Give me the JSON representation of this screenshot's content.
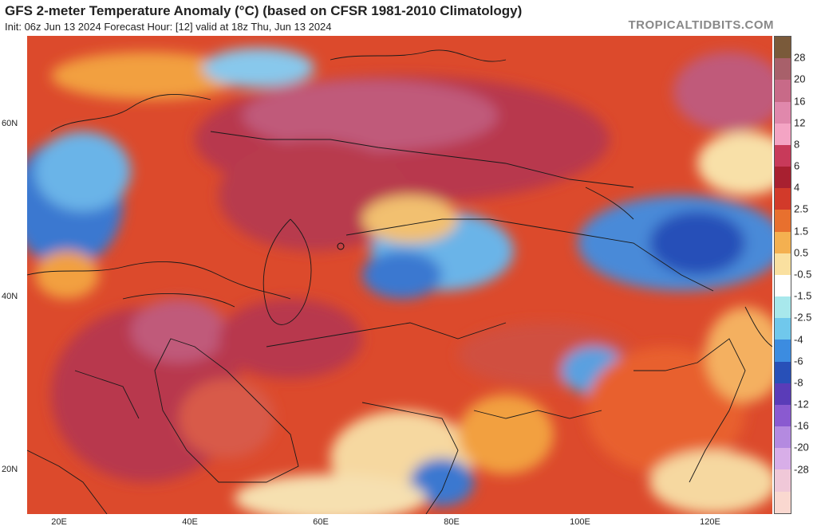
{
  "header": {
    "title": "GFS 2-meter Temperature Anomaly (°C) (based on CFSR 1981-2010 Climatology)",
    "subtitle": "Init: 06z Jun 13 2024   Forecast Hour: [12]   valid at 18z Thu, Jun 13 2024",
    "brand": "TROPICALTIDBITS.COM"
  },
  "map": {
    "lat_labels": [
      "60N",
      "40N",
      "20N"
    ],
    "lon_labels": [
      "20E",
      "40E",
      "60E",
      "80E",
      "100E",
      "120E"
    ]
  },
  "colorbar": {
    "labels": [
      "28",
      "20",
      "16",
      "12",
      "8",
      "6",
      "4",
      "2.5",
      "1.5",
      "0.5",
      "-0.5",
      "-1.5",
      "-2.5",
      "-4",
      "-6",
      "-8",
      "-12",
      "-16",
      "-20",
      "-28"
    ],
    "colors": [
      "#7a5a3a",
      "#a8606a",
      "#c86a88",
      "#e088ac",
      "#f4a4c4",
      "#c83a5a",
      "#a82030",
      "#d23a2a",
      "#e8702e",
      "#f4b050",
      "#fae0a0",
      "#ffffff",
      "#a8e8ec",
      "#70c8ec",
      "#3c8ce0",
      "#2850b8",
      "#5a3cb8",
      "#8a5ad0",
      "#b48ae0",
      "#d8aee8",
      "#f0c8d8",
      "#fad8d0"
    ]
  }
}
